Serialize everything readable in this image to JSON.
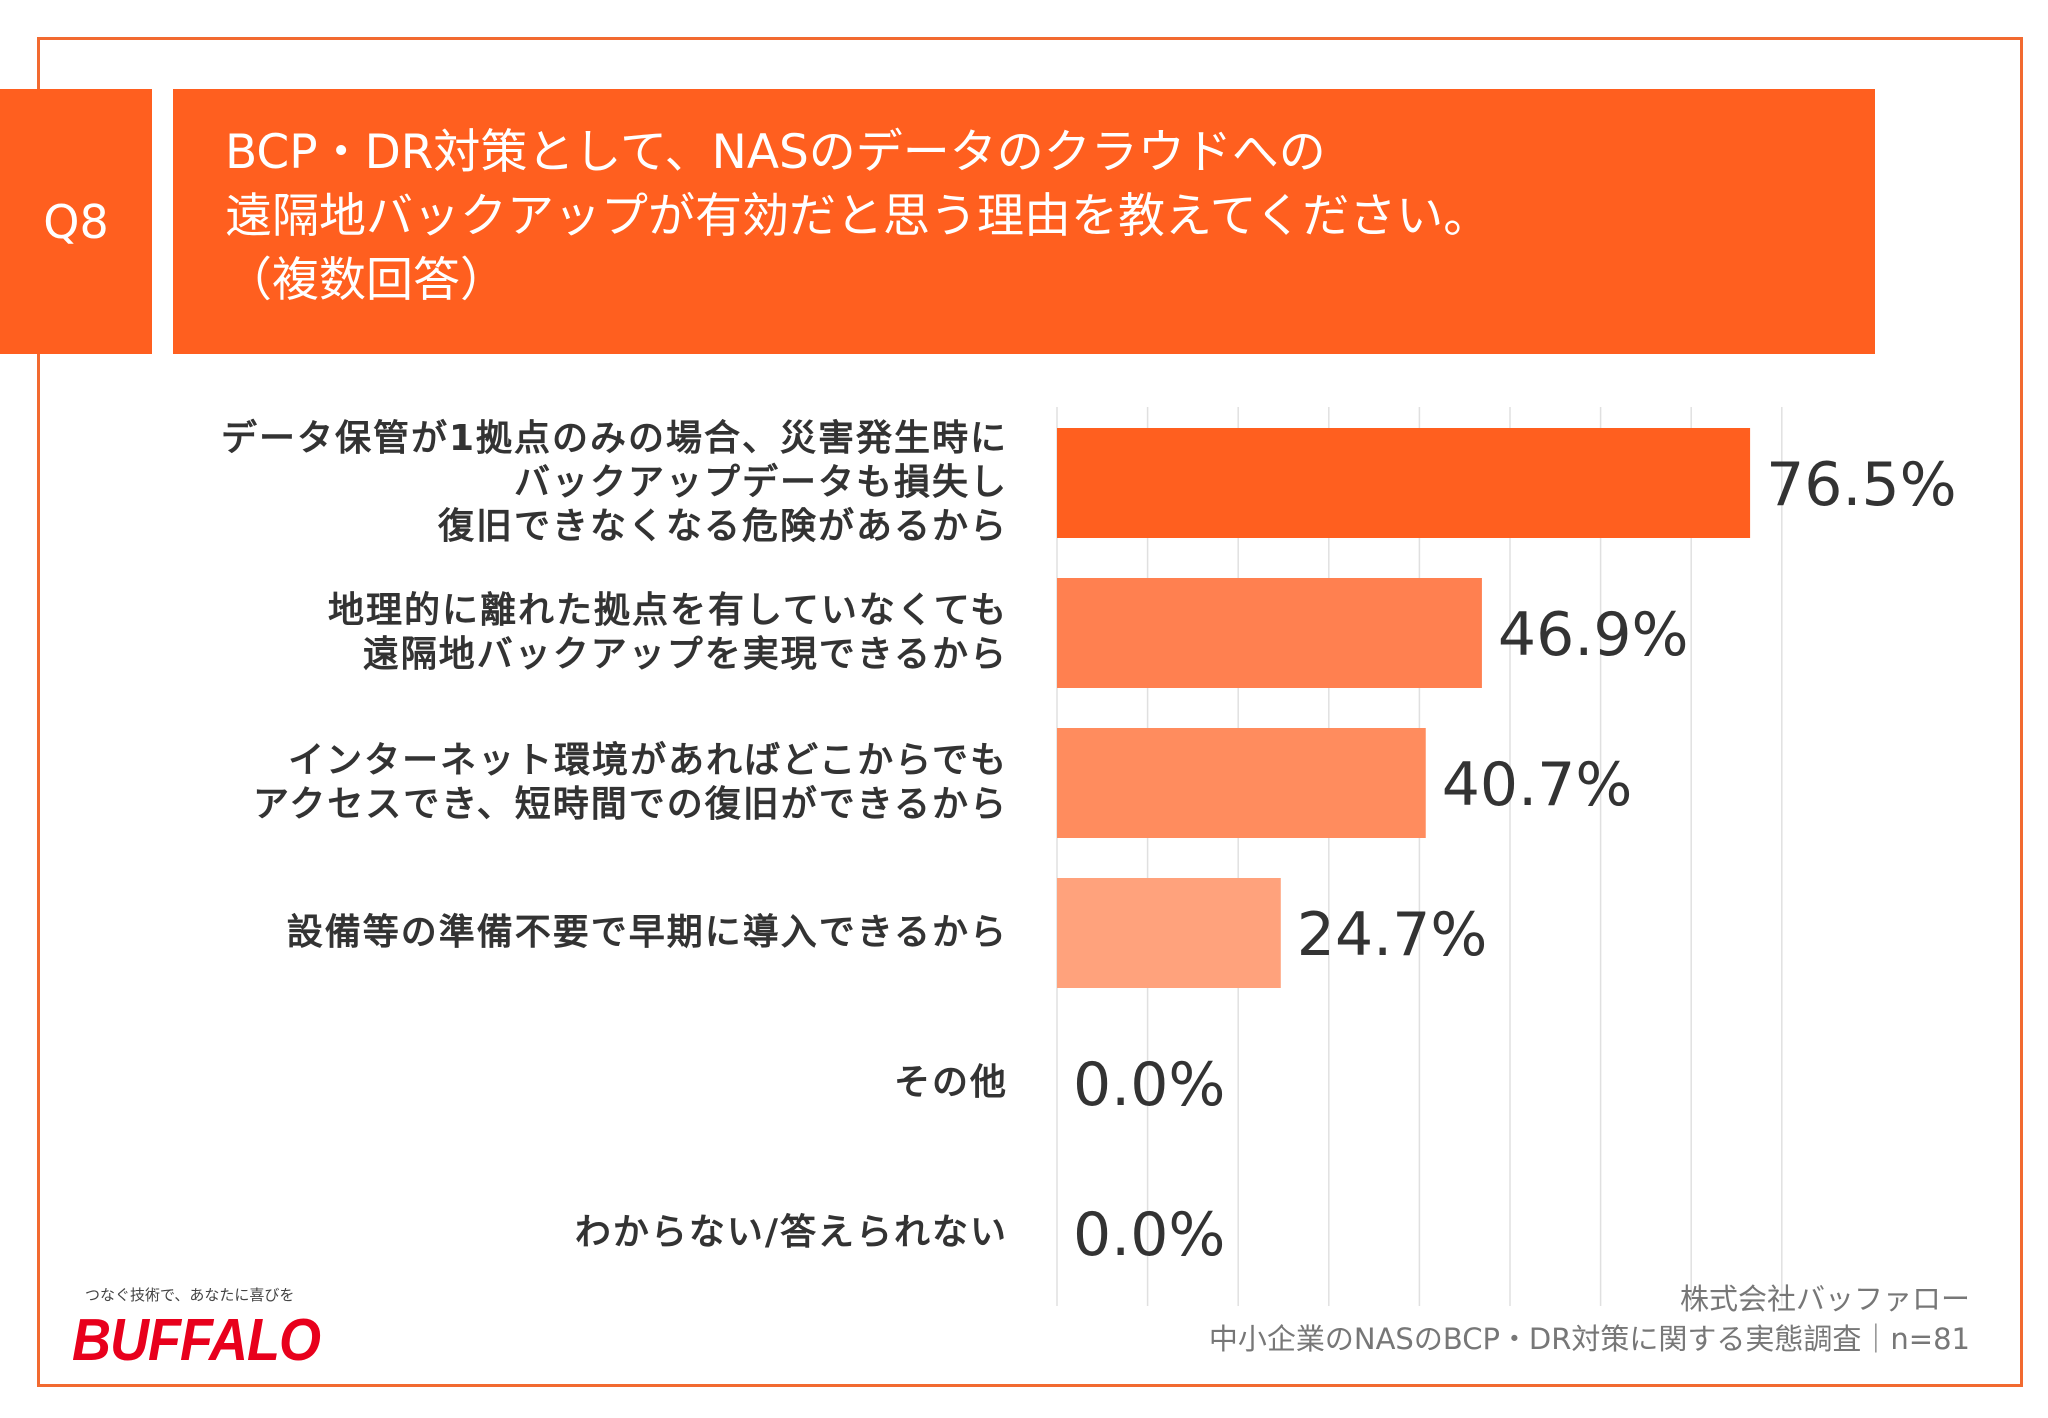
{
  "header": {
    "question_number": "Q8",
    "title_lines": [
      "BCP・DR対策として、NASのデータのクラウドへの",
      "遠隔地バックアップが有効だと思う理由を教えてください。",
      "（複数回答）"
    ]
  },
  "colors": {
    "accent": "#FF5F1F",
    "frame": "#F26A30",
    "grid": "#E0E0E0",
    "footer_text": "#777777",
    "logo": "#E8001C"
  },
  "chart_data": {
    "type": "bar",
    "orientation": "horizontal",
    "unit": "%",
    "xlim": [
      0,
      80
    ],
    "grid": true,
    "grid_step": 10,
    "categories": [
      [
        "データ保管が1拠点のみの場合、災害発生時に",
        "バックアップデータも損失し",
        "復旧できなくなる危険があるから"
      ],
      [
        "地理的に離れた拠点を有していなくても",
        "遠隔地バックアップを実現できるから"
      ],
      [
        "インターネット環境があればどこからでも",
        "アクセスでき、短時間での復旧ができるから"
      ],
      [
        "設備等の準備不要で早期に導入できるから"
      ],
      [
        "その他"
      ],
      [
        "わからない/答えられない"
      ]
    ],
    "values": [
      76.5,
      46.9,
      40.7,
      24.7,
      0.0,
      0.0
    ],
    "value_labels": [
      "76.5%",
      "46.9%",
      "40.7%",
      "24.7%",
      "0.0%",
      "0.0%"
    ],
    "bar_colors": [
      "#FF5F1F",
      "#FF8050",
      "#FF8C5E",
      "#FFA27C",
      "#FFB899",
      "#FFC9B0"
    ]
  },
  "footer": {
    "company": "株式会社バッファロー",
    "survey": "中小企業のNASのBCP・DR対策に関する実態調査｜n=81"
  },
  "logo": {
    "tagline": "つなぐ技術で、あなたに喜びを",
    "brand": "BUFFALO"
  }
}
